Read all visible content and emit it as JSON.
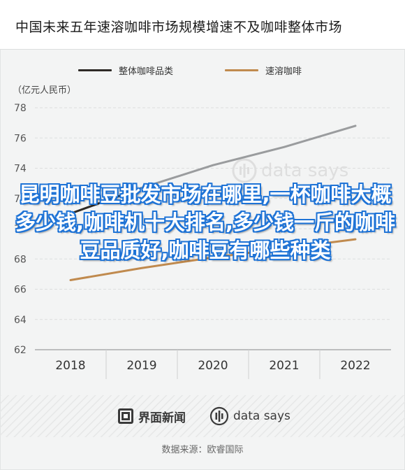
{
  "header": {
    "title": "中国未来五年速溶咖啡市场规模增速不及咖啡整体市场"
  },
  "legend": [
    {
      "label": "整体咖啡品类",
      "color": "#2e2a26"
    },
    {
      "label": "速溶咖啡",
      "color": "#c08a4e"
    }
  ],
  "unit": "（亿元人民币）",
  "chart_data": {
    "type": "line",
    "title": "中国未来五年速溶咖啡市场规模增速不及咖啡整体市场",
    "xlabel": "",
    "ylabel": "（亿元人民币）",
    "categories": [
      "2018",
      "2019",
      "2020",
      "2021",
      "2022"
    ],
    "ylim": [
      62,
      78
    ],
    "yticks": [
      62,
      64,
      66,
      68,
      70,
      72,
      74,
      76,
      78
    ],
    "grid": true,
    "legend_position": "top",
    "series": [
      {
        "name": "整体咖啡品类",
        "color": "#2e2a26",
        "highlight": "#9a9c9e",
        "values": [
          71.0,
          72.7,
          74.2,
          75.4,
          76.8
        ]
      },
      {
        "name": "速溶咖啡",
        "color": "#c08a4e",
        "values": [
          66.6,
          67.4,
          68.1,
          68.7,
          69.3
        ]
      }
    ]
  },
  "overlay": {
    "text": "昆明咖啡豆批发市场在哪里,一杯咖啡大概多少钱,咖啡机十大排名,多少钱一斤的咖啡豆品质好,咖啡豆有哪些种类"
  },
  "watermark": {
    "text": "data says"
  },
  "footer": {
    "brand_jiemian": "界面新闻",
    "brand_datasays": "data says",
    "source": "数据来源：欧睿国际"
  }
}
